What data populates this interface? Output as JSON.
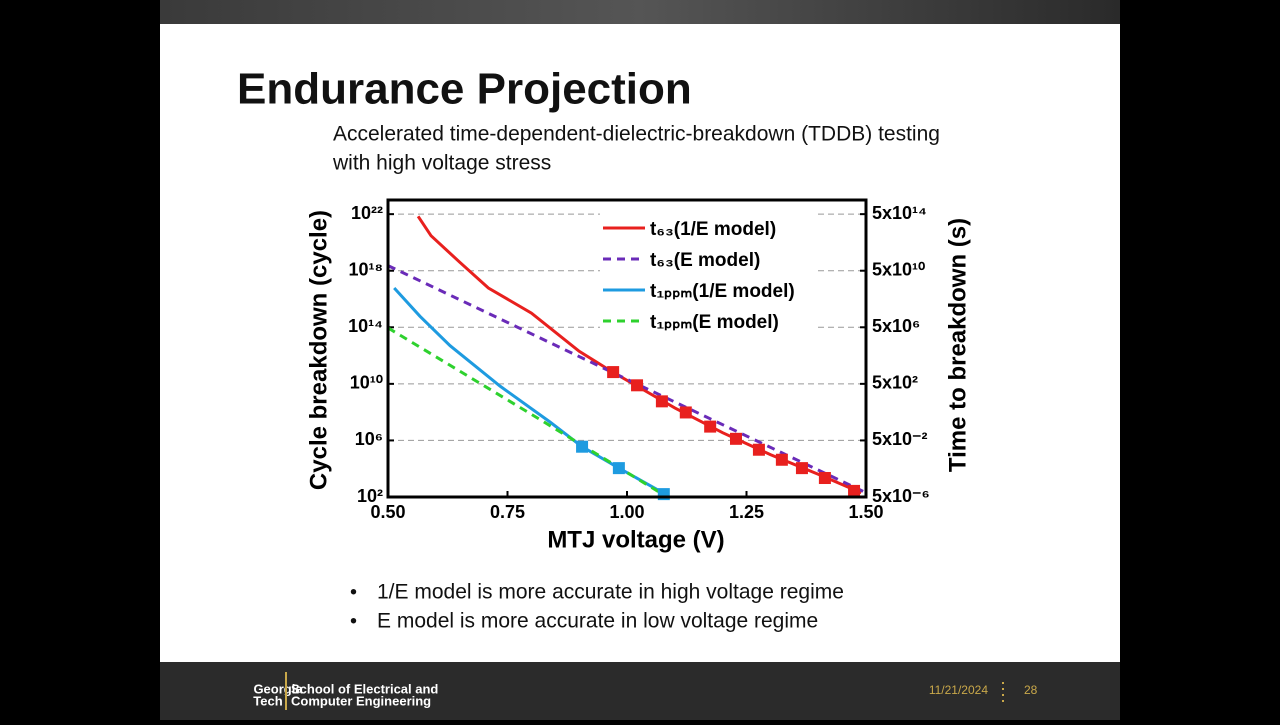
{
  "title": "Endurance Projection",
  "subtitle": [
    "Accelerated time-dependent-dielectric-breakdown (TDDB) testing",
    "with high voltage stress"
  ],
  "chart_data": {
    "type": "line",
    "xlabel": "MTJ voltage (V)",
    "ylabel": "Cycle breakdown (cycle)",
    "y2label": "Time to breakdown (s)",
    "xlim": [
      0.5,
      1.5
    ],
    "xticks": [
      {
        "value": 0.5,
        "label": "0.50"
      },
      {
        "value": 0.75,
        "label": "0.75"
      },
      {
        "value": 1.0,
        "label": "1.00"
      },
      {
        "value": 1.25,
        "label": "1.25"
      },
      {
        "value": 1.5,
        "label": "1.50"
      }
    ],
    "ylim": [
      100,
      1e+23
    ],
    "log_y": true,
    "yticks": [
      {
        "value": 100,
        "label": "10²"
      },
      {
        "value": 1000000.0,
        "label": "10⁶"
      },
      {
        "value": 10000000000.0,
        "label": "10¹⁰"
      },
      {
        "value": 100000000000000.0,
        "label": "10¹⁴"
      },
      {
        "value": 1e+18,
        "label": "10¹⁸"
      },
      {
        "value": 1e+22,
        "label": "10²²"
      }
    ],
    "y2lim": [
      5e-06,
      5000000000000000.0
    ],
    "y2ticks": [
      {
        "value": 5e-06,
        "label": "5x10⁻⁶"
      },
      {
        "value": 0.05,
        "label": "5x10⁻²"
      },
      {
        "value": 500,
        "label": "5x10²"
      },
      {
        "value": 5000000.0,
        "label": "5x10⁶"
      },
      {
        "value": 50000000000.0,
        "label": "5x10¹⁰"
      },
      {
        "value": 500000000000000.0,
        "label": "5x10¹⁴"
      }
    ],
    "grid": true,
    "legend": "upper right",
    "series": [
      {
        "name": "t₆₃(1/E model)",
        "color": "#e8201e",
        "dashed": false,
        "x": [
          0.563,
          0.59,
          0.65,
          0.71,
          0.8,
          0.9,
          0.97,
          1.1,
          1.2,
          1.3,
          1.4,
          1.49
        ],
        "values": [
          7e+21,
          3e+20,
          4e+18,
          6e+16,
          1000000000000000.0,
          2000000000000.0,
          68000000000.0,
          200000000.0,
          3500000.0,
          100000.0,
          4000.0,
          200
        ]
      },
      {
        "name": "t₆₃(E model)",
        "color": "#6a2bb8",
        "dashed": true,
        "x": [
          0.5,
          1.0,
          1.5
        ],
        "values": [
          2.3e+18,
          21000000000.0,
          200
        ]
      },
      {
        "name": "t₁ₚₚₘ(1/E model)",
        "color": "#1e9be0",
        "dashed": false,
        "x": [
          0.513,
          0.567,
          0.63,
          0.734,
          0.839,
          0.906,
          0.983,
          1.08
        ],
        "values": [
          6e+16,
          600000000000000.0,
          5000000000000.0,
          7000000000.0,
          20000000.0,
          360000.0,
          11000.0,
          160
        ]
      },
      {
        "name": "t₁ₚₚₘ(E model)",
        "color": "#2ed12e",
        "dashed": true,
        "x": [
          0.5,
          0.8,
          1.077
        ],
        "values": [
          90000000000000.0,
          70000000.0,
          140
        ]
      },
      {
        "color": "#e8201e",
        "marker": "square",
        "x": [
          0.971,
          1.021,
          1.073,
          1.123,
          1.174,
          1.228,
          1.276,
          1.324,
          1.366,
          1.414,
          1.475
        ],
        "values": [
          68000000000.0,
          7900000000.0,
          580000000.0,
          95000000.0,
          9500000.0,
          1300000.0,
          220000.0,
          43000.0,
          11000.0,
          2200.0,
          270
        ]
      },
      {
        "color": "#1e9be0",
        "marker": "square",
        "x": [
          0.906,
          0.983,
          1.077
        ],
        "values": [
          360000.0,
          11000.0,
          160
        ]
      }
    ]
  },
  "bullets": [
    "1/E model is more accurate in high voltage regime",
    "E model is more accurate in low voltage regime"
  ],
  "footer": {
    "logo": [
      "Georgia",
      "Tech"
    ],
    "school": [
      "School of Electrical and",
      "Computer Engineering"
    ],
    "date": "11/21/2024",
    "page": 28
  }
}
